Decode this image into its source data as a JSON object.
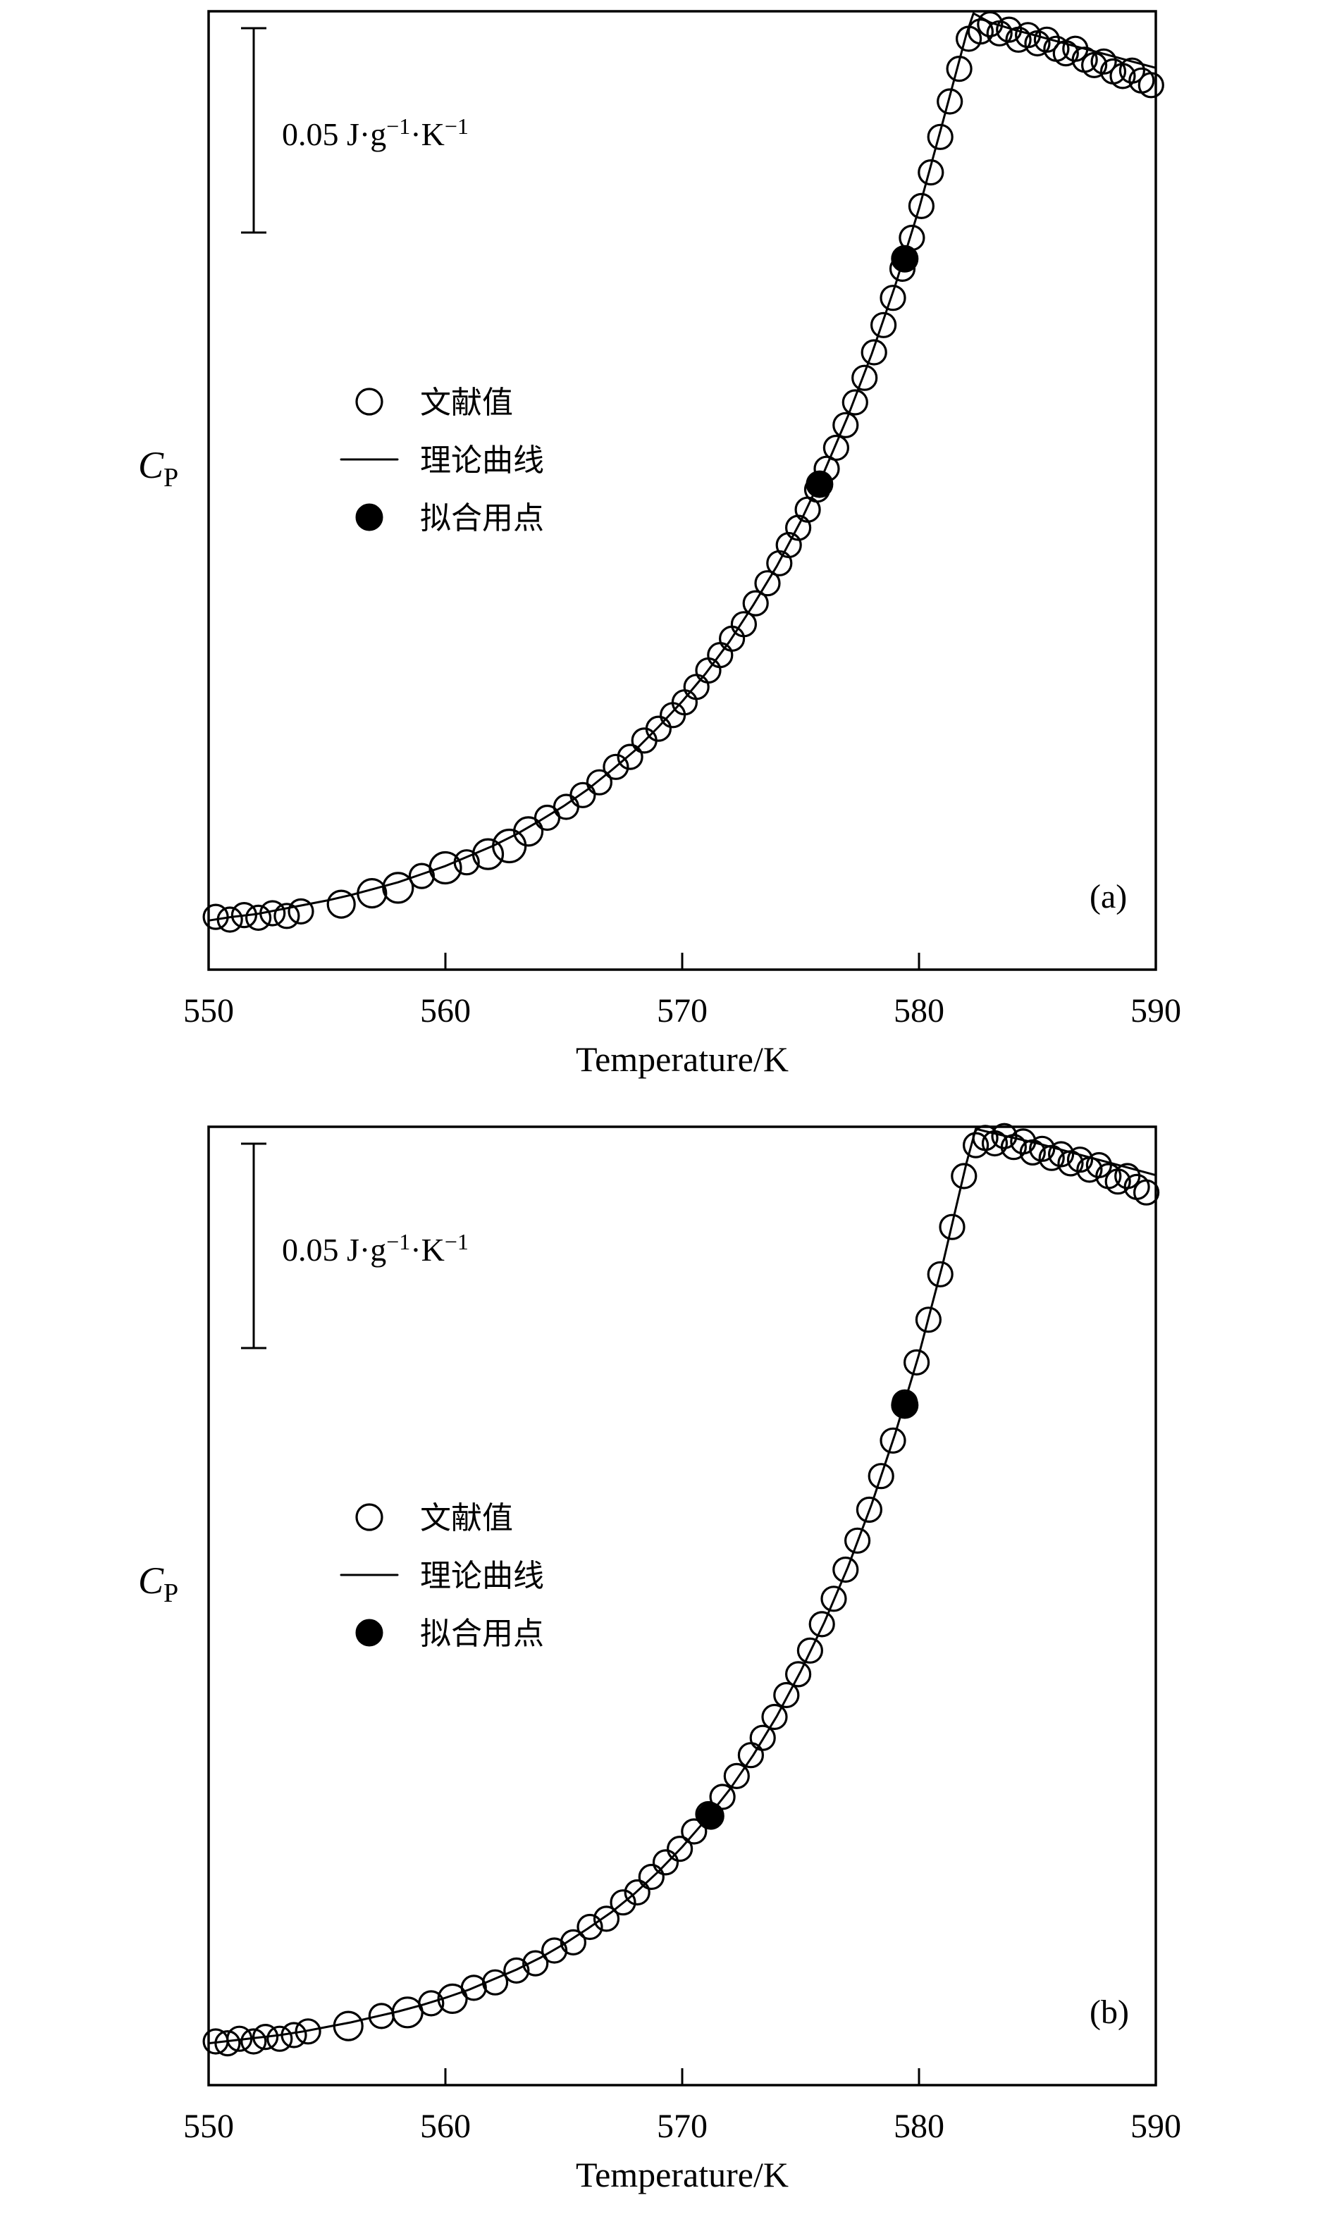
{
  "figure": {
    "x_axis_label": "Temperature/K",
    "y_label_main": "C",
    "y_label_sub": "P",
    "x_ticks": [
      "550",
      "560",
      "570",
      "580",
      "590"
    ],
    "scale_bar": {
      "full": "0.05 J·g⁻¹·K⁻¹",
      "text1": "0.05 J·g",
      "sup1": "−1",
      "text2": "·K",
      "sup2": "−1"
    },
    "legend": [
      {
        "marker": "open-circle",
        "label": "文献值"
      },
      {
        "marker": "line",
        "label": "理论曲线"
      },
      {
        "marker": "filled-circle",
        "label": "拟合用点"
      }
    ]
  },
  "chart_data": [
    {
      "type": "scatter",
      "panel": "(a)",
      "xlabel": "Temperature/K",
      "ylabel": "C_P",
      "y_units_note": "relative units 0–1; vertical scale bar inside plot = 0.05 J·g⁻¹·K⁻¹",
      "xlim": [
        550,
        590
      ],
      "ylim": [
        0,
        1.05
      ],
      "x_ticks": [
        550,
        560,
        570,
        580,
        590
      ],
      "legend_position": "upper-left-inside",
      "grid": false,
      "series": [
        {
          "name": "文献值 (literature values, open circles)",
          "marker": "open",
          "points": [
            [
              550.3,
              0.034
            ],
            [
              550.9,
              0.031
            ],
            [
              551.5,
              0.036
            ],
            [
              552.1,
              0.033
            ],
            [
              552.7,
              0.038
            ],
            [
              553.3,
              0.035
            ],
            [
              553.9,
              0.04
            ],
            [
              555.6,
              0.048,
              19
            ],
            [
              556.9,
              0.06,
              20
            ],
            [
              558.0,
              0.066,
              21
            ],
            [
              559.0,
              0.079
            ],
            [
              560.0,
              0.088,
              22
            ],
            [
              560.9,
              0.094
            ],
            [
              561.8,
              0.103,
              21
            ],
            [
              562.7,
              0.112,
              23
            ],
            [
              563.5,
              0.128,
              20
            ],
            [
              564.3,
              0.143
            ],
            [
              565.1,
              0.155
            ],
            [
              565.8,
              0.168
            ],
            [
              566.5,
              0.182
            ],
            [
              567.2,
              0.199
            ],
            [
              567.8,
              0.21
            ],
            [
              568.4,
              0.228
            ],
            [
              569.0,
              0.241
            ],
            [
              569.6,
              0.256
            ],
            [
              570.1,
              0.27
            ],
            [
              570.6,
              0.287
            ],
            [
              571.1,
              0.305
            ],
            [
              571.6,
              0.322
            ],
            [
              572.1,
              0.34
            ],
            [
              572.6,
              0.356
            ],
            [
              573.1,
              0.379
            ],
            [
              573.6,
              0.401
            ],
            [
              574.1,
              0.423
            ],
            [
              574.5,
              0.443
            ],
            [
              574.9,
              0.462
            ],
            [
              575.3,
              0.482
            ],
            [
              575.7,
              0.504
            ],
            [
              576.1,
              0.527
            ],
            [
              576.5,
              0.55
            ],
            [
              576.9,
              0.575
            ],
            [
              577.3,
              0.6
            ],
            [
              577.7,
              0.627
            ],
            [
              578.1,
              0.655
            ],
            [
              578.5,
              0.685
            ],
            [
              578.9,
              0.715
            ],
            [
              579.3,
              0.747
            ],
            [
              579.7,
              0.781
            ],
            [
              580.1,
              0.816
            ],
            [
              580.5,
              0.853
            ],
            [
              580.9,
              0.892
            ],
            [
              581.3,
              0.931
            ],
            [
              581.7,
              0.967
            ],
            [
              582.1,
              1.0
            ],
            [
              582.6,
              1.008
            ],
            [
              583.0,
              1.016
            ],
            [
              583.4,
              1.006
            ],
            [
              583.8,
              1.01
            ],
            [
              584.2,
              0.999
            ],
            [
              584.6,
              1.004
            ],
            [
              585.0,
              0.995
            ],
            [
              585.4,
              0.999
            ],
            [
              585.8,
              0.989
            ],
            [
              586.2,
              0.984
            ],
            [
              586.6,
              0.989
            ],
            [
              587.0,
              0.977
            ],
            [
              587.4,
              0.971
            ],
            [
              587.8,
              0.975
            ],
            [
              588.2,
              0.964
            ],
            [
              588.6,
              0.959
            ],
            [
              589.0,
              0.965
            ],
            [
              589.4,
              0.954
            ],
            [
              589.8,
              0.949
            ]
          ]
        },
        {
          "name": "理论曲线 (theoretical curve)",
          "marker": "line",
          "points": [
            [
              550,
              0.03
            ],
            [
              551,
              0.034
            ],
            [
              552,
              0.037
            ],
            [
              553,
              0.042
            ],
            [
              554,
              0.047
            ],
            [
              555,
              0.052
            ],
            [
              556,
              0.058
            ],
            [
              557,
              0.065
            ],
            [
              558,
              0.072
            ],
            [
              559,
              0.081
            ],
            [
              560,
              0.09
            ],
            [
              561,
              0.101
            ],
            [
              562,
              0.112
            ],
            [
              563,
              0.125
            ],
            [
              564,
              0.14
            ],
            [
              565,
              0.156
            ],
            [
              566,
              0.174
            ],
            [
              567,
              0.195
            ],
            [
              568,
              0.217
            ],
            [
              569,
              0.243
            ],
            [
              570,
              0.271
            ],
            [
              571,
              0.302
            ],
            [
              572,
              0.337
            ],
            [
              573,
              0.377
            ],
            [
              574,
              0.42
            ],
            [
              575,
              0.469
            ],
            [
              576,
              0.524
            ],
            [
              577,
              0.585
            ],
            [
              578,
              0.653
            ],
            [
              579,
              0.729
            ],
            [
              580,
              0.813
            ],
            [
              581,
              0.908
            ],
            [
              582,
              1.005
            ],
            [
              582.3,
              1.028
            ],
            [
              583,
              1.018
            ],
            [
              584,
              1.01
            ],
            [
              585,
              1.003
            ],
            [
              586,
              0.996
            ],
            [
              587,
              0.989
            ],
            [
              588,
              0.982
            ],
            [
              589,
              0.975
            ],
            [
              590,
              0.968
            ]
          ]
        },
        {
          "name": "拟合用点 (points used for fitting, filled circles)",
          "marker": "filled",
          "points": [
            [
              575.8,
              0.51
            ],
            [
              579.4,
              0.758
            ]
          ]
        }
      ]
    },
    {
      "type": "scatter",
      "panel": "(b)",
      "xlabel": "Temperature/K",
      "ylabel": "C_P",
      "y_units_note": "relative units 0–1; vertical scale bar inside plot = 0.05 J·g⁻¹·K⁻¹",
      "xlim": [
        550,
        590
      ],
      "ylim": [
        0,
        1.05
      ],
      "x_ticks": [
        550,
        560,
        570,
        580,
        590
      ],
      "legend_position": "upper-left-inside",
      "grid": false,
      "series": [
        {
          "name": "文献值 (literature values, open circles)",
          "marker": "open",
          "points": [
            [
              550.3,
              0.024
            ],
            [
              550.8,
              0.022
            ],
            [
              551.3,
              0.027
            ],
            [
              551.9,
              0.024
            ],
            [
              552.4,
              0.029
            ],
            [
              553.0,
              0.027
            ],
            [
              553.6,
              0.031
            ],
            [
              554.2,
              0.035
            ],
            [
              555.9,
              0.041,
              20
            ],
            [
              557.3,
              0.052
            ],
            [
              558.4,
              0.056,
              21
            ],
            [
              559.4,
              0.066
            ],
            [
              560.3,
              0.071,
              20
            ],
            [
              561.2,
              0.083
            ],
            [
              562.1,
              0.089
            ],
            [
              563.0,
              0.102
            ],
            [
              563.8,
              0.11
            ],
            [
              564.6,
              0.124
            ],
            [
              565.4,
              0.133
            ],
            [
              566.1,
              0.15
            ],
            [
              566.8,
              0.159
            ],
            [
              567.5,
              0.177
            ],
            [
              568.1,
              0.188
            ],
            [
              568.7,
              0.205
            ],
            [
              569.3,
              0.221
            ],
            [
              569.9,
              0.236
            ],
            [
              570.5,
              0.255
            ],
            [
              571.1,
              0.274
            ],
            [
              571.7,
              0.293
            ],
            [
              572.3,
              0.316
            ],
            [
              572.9,
              0.339
            ],
            [
              573.4,
              0.358
            ],
            [
              573.9,
              0.381
            ],
            [
              574.4,
              0.405
            ],
            [
              574.9,
              0.428
            ],
            [
              575.4,
              0.454
            ],
            [
              575.9,
              0.483
            ],
            [
              576.4,
              0.511
            ],
            [
              576.9,
              0.543
            ],
            [
              577.4,
              0.575
            ],
            [
              577.9,
              0.609
            ],
            [
              578.4,
              0.646
            ],
            [
              578.9,
              0.685
            ],
            [
              579.4,
              0.727
            ],
            [
              579.9,
              0.771
            ],
            [
              580.4,
              0.818
            ],
            [
              580.9,
              0.868
            ],
            [
              581.4,
              0.92
            ],
            [
              581.9,
              0.976
            ],
            [
              582.4,
              1.01
            ],
            [
              582.8,
              1.018
            ],
            [
              583.2,
              1.012
            ],
            [
              583.6,
              1.02
            ],
            [
              584.0,
              1.008
            ],
            [
              584.4,
              1.014
            ],
            [
              584.8,
              1.002
            ],
            [
              585.2,
              1.006
            ],
            [
              585.6,
              0.996
            ],
            [
              586.0,
              1.0
            ],
            [
              586.4,
              0.99
            ],
            [
              586.8,
              0.994
            ],
            [
              587.2,
              0.983
            ],
            [
              587.6,
              0.988
            ],
            [
              588.0,
              0.976
            ],
            [
              588.4,
              0.97
            ],
            [
              588.8,
              0.976
            ],
            [
              589.2,
              0.964
            ],
            [
              589.6,
              0.958
            ]
          ]
        },
        {
          "name": "理论曲线 (theoretical curve)",
          "marker": "line",
          "points": [
            [
              550,
              0.022
            ],
            [
              551,
              0.025
            ],
            [
              552,
              0.028
            ],
            [
              553,
              0.031
            ],
            [
              554,
              0.035
            ],
            [
              555,
              0.04
            ],
            [
              556,
              0.045
            ],
            [
              557,
              0.051
            ],
            [
              558,
              0.057
            ],
            [
              559,
              0.064
            ],
            [
              560,
              0.072
            ],
            [
              561,
              0.081
            ],
            [
              562,
              0.092
            ],
            [
              563,
              0.103
            ],
            [
              564,
              0.116
            ],
            [
              565,
              0.131
            ],
            [
              566,
              0.148
            ],
            [
              567,
              0.166
            ],
            [
              568,
              0.187
            ],
            [
              569,
              0.211
            ],
            [
              570,
              0.238
            ],
            [
              571,
              0.268
            ],
            [
              572,
              0.301
            ],
            [
              573,
              0.339
            ],
            [
              574,
              0.382
            ],
            [
              575,
              0.431
            ],
            [
              576,
              0.485
            ],
            [
              577,
              0.546
            ],
            [
              578,
              0.615
            ],
            [
              579,
              0.693
            ],
            [
              580,
              0.78
            ],
            [
              581,
              0.879
            ],
            [
              582,
              0.99
            ],
            [
              582.4,
              1.028
            ],
            [
              583,
              1.024
            ],
            [
              584,
              1.018
            ],
            [
              585,
              1.012
            ],
            [
              586,
              1.005
            ],
            [
              587,
              0.998
            ],
            [
              588,
              0.991
            ],
            [
              589,
              0.984
            ],
            [
              590,
              0.977
            ]
          ]
        },
        {
          "name": "拟合用点 (points used for fitting, filled circles)",
          "marker": "filled",
          "points": [
            [
              571.2,
              0.272
            ],
            [
              579.4,
              0.724
            ]
          ]
        }
      ]
    }
  ]
}
